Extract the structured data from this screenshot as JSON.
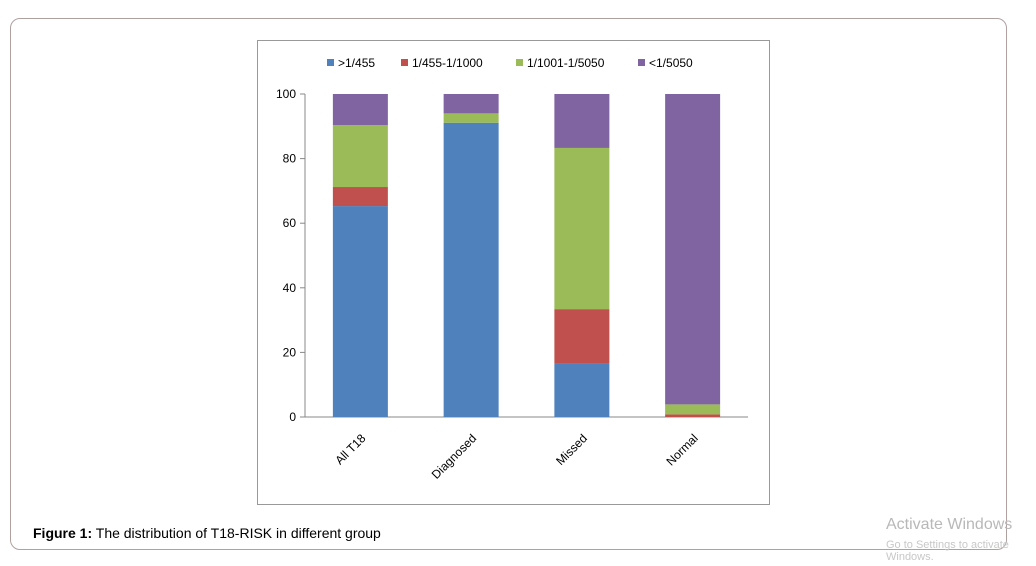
{
  "chart_data": {
    "type": "bar",
    "stacked": true,
    "categories": [
      "All T18",
      "Diagnosed",
      "Missed",
      "Normal"
    ],
    "series": [
      {
        "name": ">1/455",
        "color": "#4f81bd",
        "values": [
          65.3,
          91.1,
          16.7,
          0
        ]
      },
      {
        "name": "1/455-1/1000",
        "color": "#c0504d",
        "values": [
          5.9,
          0,
          16.7,
          0.8
        ]
      },
      {
        "name": "1/1001-1/5050",
        "color": "#9bbb59",
        "values": [
          19.2,
          2.9,
          49.9,
          3.1
        ]
      },
      {
        "name": "<1/5050",
        "color": "#8064a2",
        "values": [
          9.6,
          6.0,
          16.7,
          96.1
        ]
      }
    ],
    "ylim": [
      0,
      100
    ],
    "yticks": [
      0,
      20,
      40,
      60,
      80,
      100
    ],
    "legend": "top",
    "grid": false
  },
  "caption": {
    "label": "Figure 1:",
    "text": " The distribution of T18-RISK in different group"
  },
  "watermark": {
    "line1": "Activate Windows",
    "line2": "Go to Settings to activate Windows."
  }
}
